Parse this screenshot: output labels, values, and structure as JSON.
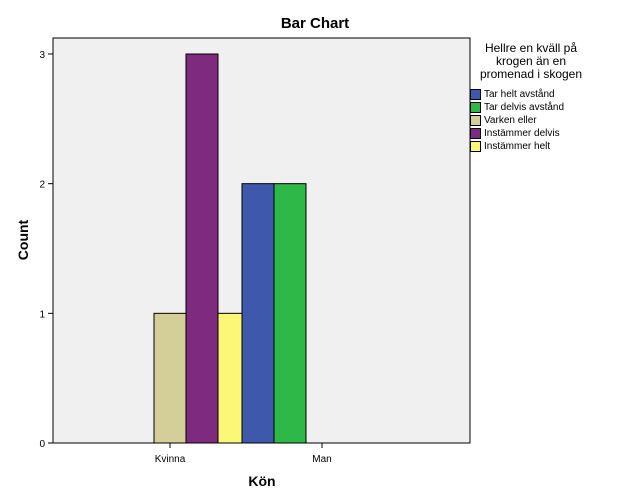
{
  "chart_data": {
    "type": "bar",
    "title": "Bar Chart",
    "xlabel": "Kön",
    "ylabel": "Count",
    "categories": [
      "Kvinna",
      "Man"
    ],
    "ylim": [
      0,
      3
    ],
    "yticks": [
      "0",
      "1",
      "2",
      "3"
    ],
    "legend_title": "Hellre en kväll på krogen än en promenad i skogen",
    "legend_position": "right",
    "series": [
      {
        "name": "Tar helt avstånd",
        "color": "#3e58ac",
        "values": [
          0,
          2
        ]
      },
      {
        "name": "Tar delvis avstånd",
        "color": "#2eb848",
        "values": [
          0,
          2
        ]
      },
      {
        "name": "Varken eller",
        "color": "#d4cf98",
        "values": [
          1,
          0
        ]
      },
      {
        "name": "Instämmer delvis",
        "color": "#7e2a7e",
        "values": [
          3,
          0
        ]
      },
      {
        "name": "Instämmer helt",
        "color": "#fcf776",
        "values": [
          1,
          0
        ]
      }
    ],
    "plot_background": "#f0f0f0",
    "grid": false
  }
}
